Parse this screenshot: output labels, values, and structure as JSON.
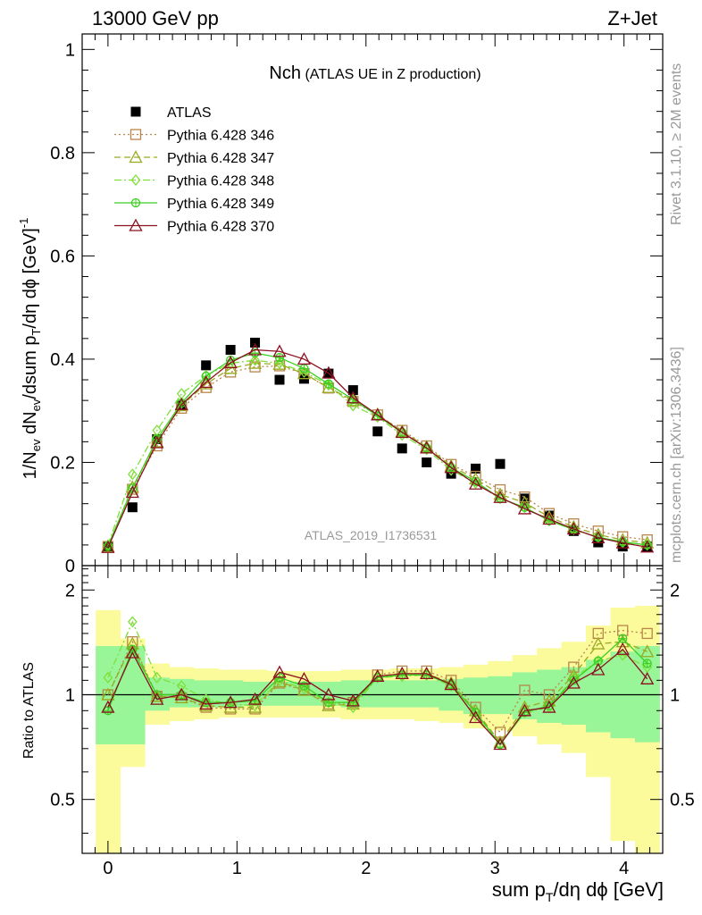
{
  "header": {
    "left": "13000 GeV pp",
    "right": "Z+Jet",
    "title_main": "Nch",
    "title_sub": "(ATLAS UE in Z production)"
  },
  "side_labels": {
    "top": "Rivet 3.1.10, ≥ 2M events",
    "bottom": "mcplots.cern.ch [arXiv:1306.3436]"
  },
  "watermark": "ATLAS_2019_I1736531",
  "axes": {
    "xlabel": "sum p_T/dη dϕ [GeV]",
    "ylabel_top": "1/N_ev dN_ev/dsum p_T/dη dϕ [GeV]^-1",
    "ylabel_bottom": "Ratio to ATLAS",
    "x_ticks": [
      "0",
      "1",
      "2",
      "3",
      "4"
    ],
    "y_ticks_top": [
      "0",
      "0.2",
      "0.4",
      "0.6",
      "0.8",
      "1"
    ],
    "y_ticks_bottom": [
      "0.5",
      "1",
      "2"
    ]
  },
  "colors": {
    "atlas": "#000000",
    "p346": "#b8864b",
    "p347": "#9aaa20",
    "p348": "#7fe03a",
    "p349": "#3ad020",
    "p370": "#8b1020",
    "band_inner": "#98f598",
    "band_outer": "#fbfb9c"
  },
  "chart_data": {
    "type": "scatter",
    "x": [
      0.0,
      0.19,
      0.38,
      0.57,
      0.76,
      0.95,
      1.14,
      1.33,
      1.52,
      1.71,
      1.9,
      2.09,
      2.28,
      2.47,
      2.66,
      2.85,
      3.04,
      3.23,
      3.42,
      3.61,
      3.8,
      3.99,
      4.18
    ],
    "xlim": [
      -0.2,
      4.3
    ],
    "ylim_top": [
      0,
      1.03
    ],
    "ylim_bottom": [
      0.35,
      2.35
    ],
    "ratio_scale": "log",
    "series": [
      {
        "name": "ATLAS",
        "marker": "filled-square",
        "values": [
          0.038,
          0.113,
          0.245,
          0.31,
          0.388,
          0.418,
          0.432,
          0.36,
          0.362,
          0.372,
          0.34,
          0.26,
          0.227,
          0.2,
          0.178,
          0.188,
          0.197,
          0.13,
          0.097,
          0.067,
          0.045,
          0.037,
          0.037
        ]
      },
      {
        "name": "Pythia 6.428 346",
        "marker": "open-square",
        "line": "dotted",
        "values": [
          0.037,
          0.148,
          0.232,
          0.305,
          0.345,
          0.375,
          0.385,
          0.387,
          0.372,
          0.344,
          0.318,
          0.292,
          0.262,
          0.232,
          0.196,
          0.173,
          0.147,
          0.133,
          0.101,
          0.081,
          0.067,
          0.056,
          0.05
        ]
      },
      {
        "name": "Pythia 6.428 347",
        "marker": "open-triangle",
        "line": "dash",
        "values": [
          0.037,
          0.152,
          0.24,
          0.31,
          0.352,
          0.382,
          0.392,
          0.39,
          0.372,
          0.345,
          0.32,
          0.293,
          0.26,
          0.23,
          0.193,
          0.168,
          0.138,
          0.122,
          0.094,
          0.075,
          0.06,
          0.05,
          0.044
        ]
      },
      {
        "name": "Pythia 6.428 348",
        "marker": "open-diamond",
        "line": "dashdot",
        "values": [
          0.04,
          0.177,
          0.262,
          0.333,
          0.368,
          0.392,
          0.398,
          0.392,
          0.375,
          0.35,
          0.31,
          0.288,
          0.253,
          0.225,
          0.185,
          0.16,
          0.13,
          0.113,
          0.087,
          0.07,
          0.055,
          0.045,
          0.04
        ]
      },
      {
        "name": "Pythia 6.428 349",
        "marker": "open-circle-cross",
        "line": "solid",
        "values": [
          0.038,
          0.15,
          0.245,
          0.315,
          0.367,
          0.398,
          0.412,
          0.403,
          0.382,
          0.352,
          0.322,
          0.29,
          0.258,
          0.228,
          0.19,
          0.163,
          0.13,
          0.113,
          0.087,
          0.07,
          0.055,
          0.046,
          0.04
        ]
      },
      {
        "name": "Pythia 6.428 370",
        "marker": "open-triangle",
        "line": "solid",
        "values": [
          0.035,
          0.142,
          0.238,
          0.312,
          0.355,
          0.393,
          0.418,
          0.415,
          0.4,
          0.373,
          0.325,
          0.292,
          0.258,
          0.228,
          0.19,
          0.158,
          0.132,
          0.11,
          0.09,
          0.071,
          0.054,
          0.044,
          0.036
        ]
      }
    ],
    "ratio_series": [
      {
        "name": "Pythia 6.428 346",
        "values": [
          1.0,
          1.42,
          0.99,
          0.98,
          0.92,
          0.91,
          0.91,
          1.08,
          1.03,
          0.94,
          0.95,
          1.14,
          1.17,
          1.17,
          1.1,
          0.92,
          0.78,
          1.03,
          1.0,
          1.2,
          1.5,
          1.53,
          1.5
        ]
      },
      {
        "name": "Pythia 6.428 347",
        "values": [
          1.0,
          1.4,
          0.99,
          0.98,
          0.93,
          0.92,
          0.92,
          1.09,
          1.03,
          0.93,
          0.94,
          1.13,
          1.15,
          1.15,
          1.08,
          0.9,
          0.73,
          0.92,
          0.96,
          1.14,
          1.4,
          1.42,
          1.33
        ]
      },
      {
        "name": "Pythia 6.428 348",
        "values": [
          1.12,
          1.62,
          1.12,
          1.06,
          0.97,
          0.94,
          0.93,
          1.1,
          1.04,
          0.95,
          0.92,
          1.12,
          1.13,
          1.14,
          1.06,
          0.87,
          0.72,
          0.89,
          0.92,
          1.12,
          1.25,
          1.3,
          1.2
        ]
      },
      {
        "name": "Pythia 6.428 349",
        "values": [
          0.9,
          1.35,
          1.0,
          1.0,
          0.95,
          0.95,
          0.96,
          1.12,
          1.06,
          0.95,
          0.95,
          1.12,
          1.14,
          1.14,
          1.07,
          0.89,
          0.72,
          0.89,
          0.93,
          1.1,
          1.25,
          1.45,
          1.23
        ]
      },
      {
        "name": "Pythia 6.428 370",
        "values": [
          0.92,
          1.32,
          0.97,
          1.0,
          0.94,
          0.95,
          0.97,
          1.16,
          1.11,
          1.0,
          0.96,
          1.13,
          1.15,
          1.15,
          1.07,
          0.86,
          0.72,
          0.9,
          0.92,
          1.08,
          1.18,
          1.35,
          1.11
        ]
      }
    ],
    "uncertainty_band": {
      "inner_lo": [
        0.72,
        0.72,
        0.9,
        0.92,
        0.92,
        0.92,
        0.93,
        0.93,
        0.93,
        0.93,
        0.92,
        0.92,
        0.92,
        0.92,
        0.9,
        0.88,
        0.88,
        0.85,
        0.83,
        0.82,
        0.78,
        0.75,
        0.73
      ],
      "inner_hi": [
        1.38,
        1.38,
        1.12,
        1.11,
        1.1,
        1.1,
        1.09,
        1.09,
        1.09,
        1.09,
        1.1,
        1.1,
        1.1,
        1.1,
        1.11,
        1.12,
        1.13,
        1.16,
        1.18,
        1.2,
        1.26,
        1.33,
        1.38
      ],
      "outer_lo": [
        0.35,
        0.62,
        0.82,
        0.84,
        0.85,
        0.86,
        0.86,
        0.86,
        0.86,
        0.86,
        0.85,
        0.85,
        0.85,
        0.84,
        0.83,
        0.8,
        0.79,
        0.76,
        0.72,
        0.68,
        0.58,
        0.38,
        0.35
      ],
      "outer_hi": [
        1.75,
        1.45,
        1.23,
        1.2,
        1.19,
        1.18,
        1.18,
        1.17,
        1.17,
        1.17,
        1.18,
        1.18,
        1.19,
        1.19,
        1.2,
        1.22,
        1.25,
        1.3,
        1.36,
        1.42,
        1.58,
        1.78,
        1.8
      ]
    }
  }
}
